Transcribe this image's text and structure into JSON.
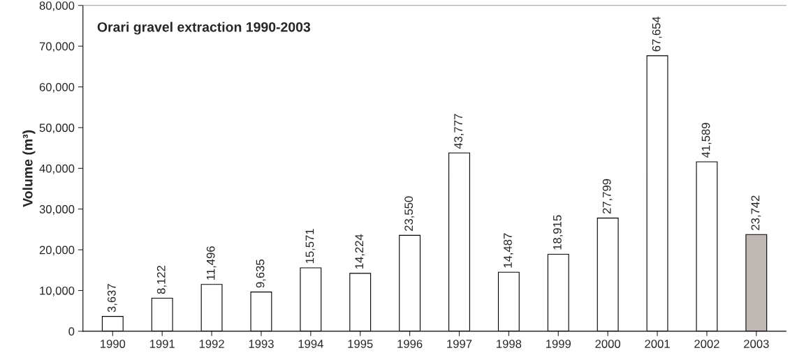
{
  "chart_data": {
    "type": "bar",
    "title": "Orari gravel extraction 1990-2003",
    "ylabel": "Volume (m³)",
    "categories": [
      "1990",
      "1991",
      "1992",
      "1993",
      "1994",
      "1995",
      "1996",
      "1997",
      "1998",
      "1999",
      "2000",
      "2001",
      "2002",
      "2003"
    ],
    "values": [
      3637,
      8122,
      11496,
      9635,
      15571,
      14224,
      23550,
      43777,
      14487,
      18915,
      27799,
      67654,
      41589,
      23742
    ],
    "value_labels": [
      "3,637",
      "8,122",
      "11,496",
      "9,635",
      "15,571",
      "14,224",
      "23,550",
      "43,777",
      "14,487",
      "18,915",
      "27,799",
      "67,654",
      "41,589",
      "23,742"
    ],
    "colors": [
      "#ffffff",
      "#ffffff",
      "#ffffff",
      "#ffffff",
      "#ffffff",
      "#ffffff",
      "#ffffff",
      "#ffffff",
      "#ffffff",
      "#ffffff",
      "#ffffff",
      "#ffffff",
      "#ffffff",
      "#c0b8b4"
    ],
    "ylim": [
      0,
      80000
    ],
    "yticks": [
      0,
      {
        "value": 10000,
        "label": "10,000"
      },
      {
        "value": 20000,
        "label": "20,000"
      },
      {
        "value": 30000,
        "label": "30,000"
      },
      {
        "value": 40000,
        "label": "40,000"
      },
      {
        "value": 50000,
        "label": "50,000"
      },
      {
        "value": 60000,
        "label": "60,000"
      },
      {
        "value": 70000,
        "label": "70,000"
      },
      {
        "value": 80000,
        "label": "80,000"
      }
    ],
    "grid": false,
    "legend": false
  }
}
